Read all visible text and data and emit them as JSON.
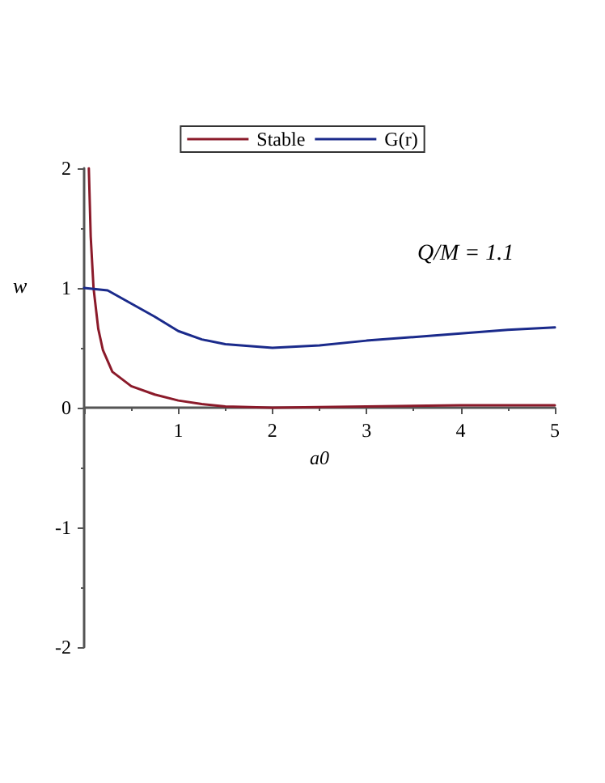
{
  "chart_data": {
    "type": "line",
    "xlabel": "a0",
    "ylabel": "w",
    "annotations": [
      "Q/M = 1.1"
    ],
    "xlim": [
      0,
      5
    ],
    "xticks": [
      {
        "value": 0,
        "label": null
      },
      1,
      2,
      3,
      4,
      5
    ],
    "ylim": [
      -2,
      2
    ],
    "yticks": [
      -2,
      -1,
      0,
      1,
      2
    ],
    "grid": false,
    "legend": "top",
    "marker": "none",
    "line_style": "solid",
    "series": [
      {
        "name": "Stable",
        "color": "#8b1a2a",
        "x": [
          0.05,
          0.07,
          0.1,
          0.15,
          0.2,
          0.3,
          0.5,
          0.75,
          1,
          1.25,
          1.5,
          2,
          3,
          4,
          5
        ],
        "values": [
          2.0,
          1.43,
          1.0,
          0.66,
          0.48,
          0.3,
          0.18,
          0.11,
          0.06,
          0.03,
          0.01,
          0.0,
          0.01,
          0.02,
          0.02
        ]
      },
      {
        "name": "G(r)",
        "color": "#1a2a8b",
        "x": [
          0,
          0.25,
          0.5,
          0.75,
          1,
          1.25,
          1.5,
          2,
          2.5,
          3,
          3.5,
          4,
          4.5,
          5
        ],
        "values": [
          1.0,
          0.98,
          0.87,
          0.76,
          0.64,
          0.57,
          0.53,
          0.5,
          0.52,
          0.56,
          0.59,
          0.62,
          0.65,
          0.67
        ]
      }
    ]
  }
}
